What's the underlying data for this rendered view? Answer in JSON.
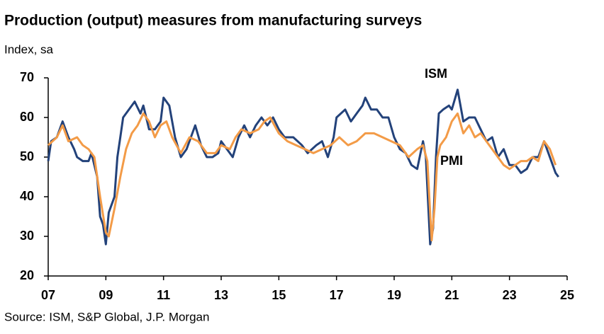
{
  "chart_data": {
    "type": "line",
    "title": "Production (output) measures from manufacturing surveys",
    "subtitle": "Index, sa",
    "source": "Source: ISM, S&P Global, J.P. Morgan",
    "xlim": [
      2007,
      2025
    ],
    "xticks": [
      {
        "value": 2007,
        "label": "07"
      },
      {
        "value": 2009,
        "label": "09"
      },
      {
        "value": 2011,
        "label": "11"
      },
      {
        "value": 2013,
        "label": "13"
      },
      {
        "value": 2015,
        "label": "15"
      },
      {
        "value": 2017,
        "label": "17"
      },
      {
        "value": 2019,
        "label": "19"
      },
      {
        "value": 2021,
        "label": "21"
      },
      {
        "value": 2023,
        "label": "23"
      },
      {
        "value": 2025,
        "label": "25"
      }
    ],
    "ylim": [
      20,
      70
    ],
    "yticks": [
      20,
      30,
      40,
      50,
      60,
      70
    ],
    "series": [
      {
        "name": "ISM",
        "color": "#23427a",
        "x": [
          2007.0,
          2007.1,
          2007.3,
          2007.5,
          2007.7,
          2007.9,
          2008.0,
          2008.2,
          2008.4,
          2008.5,
          2008.7,
          2008.8,
          2008.9,
          2009.0,
          2009.1,
          2009.3,
          2009.4,
          2009.5,
          2009.6,
          2009.8,
          2010.0,
          2010.2,
          2010.3,
          2010.5,
          2010.7,
          2010.9,
          2011.0,
          2011.2,
          2011.4,
          2011.6,
          2011.8,
          2012.0,
          2012.1,
          2012.3,
          2012.5,
          2012.7,
          2012.9,
          2013.0,
          2013.2,
          2013.4,
          2013.6,
          2013.8,
          2014.0,
          2014.2,
          2014.4,
          2014.6,
          2014.8,
          2015.0,
          2015.2,
          2015.5,
          2015.8,
          2016.0,
          2016.3,
          2016.5,
          2016.7,
          2016.9,
          2017.0,
          2017.3,
          2017.5,
          2017.7,
          2017.9,
          2018.0,
          2018.2,
          2018.4,
          2018.6,
          2018.8,
          2019.0,
          2019.2,
          2019.4,
          2019.6,
          2019.8,
          2020.0,
          2020.1,
          2020.25,
          2020.35,
          2020.45,
          2020.55,
          2020.7,
          2020.9,
          2021.0,
          2021.2,
          2021.4,
          2021.6,
          2021.8,
          2022.0,
          2022.2,
          2022.4,
          2022.6,
          2022.8,
          2023.0,
          2023.2,
          2023.4,
          2023.6,
          2023.8,
          2024.0,
          2024.2,
          2024.4,
          2024.6,
          2024.7
        ],
        "values": [
          49,
          54,
          55,
          59,
          55,
          52,
          50,
          49,
          49,
          51,
          45,
          35,
          33,
          28,
          36,
          40,
          50,
          55,
          60,
          62,
          64,
          61,
          63,
          57,
          57,
          59,
          65,
          63,
          55,
          50,
          52,
          56,
          58,
          53,
          50,
          50,
          51,
          54,
          52,
          50,
          55,
          58,
          55,
          58,
          60,
          58,
          60,
          57,
          55,
          55,
          53,
          51,
          53,
          54,
          50,
          55,
          60,
          62,
          59,
          61,
          63,
          65,
          62,
          62,
          60,
          60,
          55,
          52,
          51,
          48,
          47,
          54,
          50,
          28,
          32,
          50,
          61,
          62,
          63,
          62,
          67,
          59,
          60,
          60,
          57,
          54,
          55,
          50,
          52,
          48,
          48,
          46,
          47,
          50,
          50,
          54,
          50,
          46,
          45
        ]
      },
      {
        "name": "PMI",
        "color": "#f39b47",
        "x": [
          2007.0,
          2007.3,
          2007.5,
          2007.7,
          2008.0,
          2008.2,
          2008.4,
          2008.6,
          2008.8,
          2009.0,
          2009.1,
          2009.3,
          2009.5,
          2009.7,
          2009.9,
          2010.1,
          2010.3,
          2010.5,
          2010.7,
          2010.9,
          2011.1,
          2011.3,
          2011.6,
          2011.9,
          2012.2,
          2012.5,
          2012.8,
          2013.0,
          2013.3,
          2013.5,
          2013.7,
          2014.0,
          2014.3,
          2014.5,
          2014.7,
          2015.0,
          2015.3,
          2015.6,
          2015.9,
          2016.2,
          2016.5,
          2016.8,
          2017.1,
          2017.4,
          2017.7,
          2018.0,
          2018.3,
          2018.6,
          2018.9,
          2019.2,
          2019.5,
          2019.8,
          2020.0,
          2020.15,
          2020.3,
          2020.4,
          2020.5,
          2020.6,
          2020.8,
          2021.0,
          2021.2,
          2021.4,
          2021.6,
          2021.8,
          2022.0,
          2022.2,
          2022.5,
          2022.8,
          2023.0,
          2023.2,
          2023.4,
          2023.6,
          2023.8,
          2024.0,
          2024.2,
          2024.4,
          2024.6
        ],
        "values": [
          53,
          55,
          58,
          54,
          55,
          53,
          52,
          50,
          40,
          31,
          30,
          37,
          45,
          52,
          56,
          58,
          61,
          59,
          55,
          58,
          59,
          55,
          51,
          55,
          54,
          51,
          51,
          53,
          52,
          55,
          57,
          56,
          57,
          59,
          60,
          56,
          54,
          53,
          52,
          51,
          52,
          53,
          55,
          53,
          54,
          56,
          56,
          55,
          54,
          53,
          50,
          52,
          53,
          49,
          29,
          37,
          50,
          53,
          55,
          59,
          61,
          56,
          58,
          55,
          56,
          54,
          51,
          48,
          47,
          48,
          49,
          49,
          50,
          49,
          54,
          52,
          48
        ]
      }
    ]
  }
}
